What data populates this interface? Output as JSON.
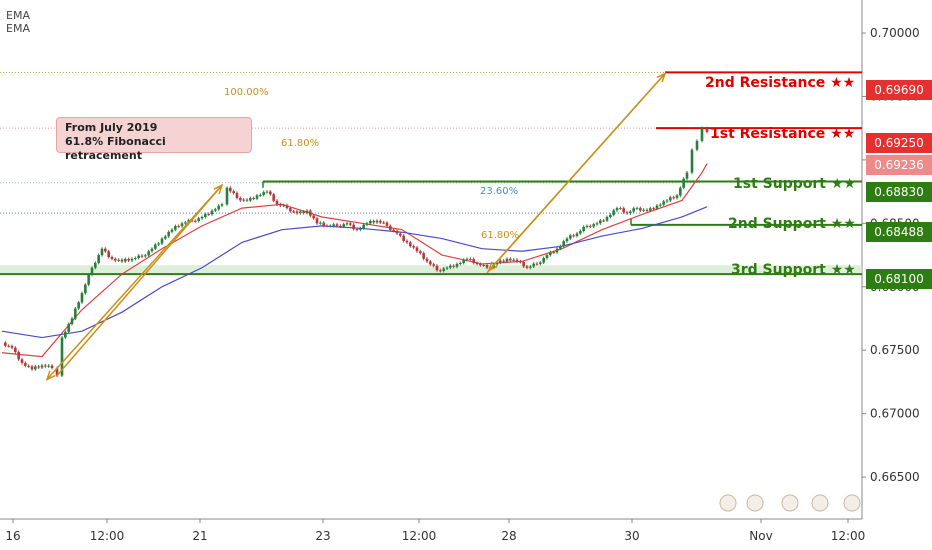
{
  "indicators": {
    "ema_1": "EMA",
    "ema_2": "EMA"
  },
  "callout": {
    "line1": "From July 2019",
    "line2": "61.8% Fibonacci retracement"
  },
  "fib": {
    "f100": "100.00%",
    "f618_upper": "61.80%",
    "f236": "23.60%",
    "f618_lower": "61.80%"
  },
  "levels": {
    "r2": {
      "label": "2nd Resistance ★★",
      "price": "0.69690"
    },
    "r1": {
      "label": "1st Resistance ★★",
      "price": "0.69250"
    },
    "current": {
      "price": "0.69236"
    },
    "s1": {
      "label": "1st Support ★★",
      "price": "0.68830"
    },
    "s2": {
      "label": "2nd Support ★★",
      "price": "0.68488"
    },
    "s3": {
      "label": "3rd Support ★★",
      "price": "0.68100"
    }
  },
  "chart_data": {
    "type": "line",
    "title": "",
    "xlabel": "",
    "ylabel": "",
    "y_ticks": [
      "0.70000",
      "0.69500",
      "0.69000",
      "0.68500",
      "0.68000",
      "0.67500",
      "0.67000",
      "0.66500"
    ],
    "x_ticks": [
      "16",
      "12:00",
      "21",
      "23",
      "12:00",
      "28",
      "30",
      "Nov",
      "12:00"
    ],
    "ylim": [
      0.6617,
      0.7026
    ],
    "colors": {
      "up": "#26803a",
      "down": "#b23a3a",
      "ema_fast": "#e04040",
      "ema_slow": "#4a4ac8",
      "support": "#2e7d12",
      "resistance": "#e00000",
      "fib": "#c9901a"
    },
    "series": [
      {
        "name": "price",
        "x": [
          0,
          10,
          20,
          30,
          40,
          50,
          55,
          60,
          70,
          80,
          90,
          100,
          110,
          120,
          130,
          140,
          150,
          160,
          170,
          180,
          190,
          200,
          210,
          220,
          225,
          235,
          245,
          255,
          265,
          275,
          285,
          295,
          305,
          315,
          325,
          335,
          345,
          355,
          365,
          375,
          385,
          395,
          405,
          415,
          425,
          435,
          445,
          455,
          465,
          475,
          485,
          495,
          505,
          515,
          525,
          535,
          545,
          555,
          565,
          575,
          585,
          595,
          605,
          615,
          625,
          635,
          645,
          655,
          665,
          675,
          685,
          690,
          695,
          700,
          705
        ],
        "y": [
          0.6756,
          0.6752,
          0.674,
          0.6735,
          0.6738,
          0.6736,
          0.673,
          0.676,
          0.6775,
          0.6795,
          0.6815,
          0.683,
          0.6822,
          0.682,
          0.6822,
          0.6824,
          0.683,
          0.6838,
          0.6845,
          0.685,
          0.6852,
          0.6855,
          0.686,
          0.6865,
          0.6878,
          0.687,
          0.6868,
          0.6872,
          0.6875,
          0.6865,
          0.6862,
          0.6858,
          0.686,
          0.685,
          0.6848,
          0.6848,
          0.685,
          0.6845,
          0.685,
          0.6852,
          0.6848,
          0.6842,
          0.6835,
          0.6828,
          0.682,
          0.6813,
          0.6815,
          0.6818,
          0.6822,
          0.6818,
          0.6815,
          0.6819,
          0.6822,
          0.682,
          0.6815,
          0.6818,
          0.6825,
          0.683,
          0.6838,
          0.6842,
          0.6848,
          0.685,
          0.6855,
          0.6862,
          0.6858,
          0.6862,
          0.686,
          0.6864,
          0.6868,
          0.6872,
          0.689,
          0.6908,
          0.6915,
          0.6925,
          0.6922
        ]
      },
      {
        "name": "EMA",
        "x": [
          0,
          40,
          80,
          120,
          160,
          200,
          240,
          280,
          320,
          360,
          400,
          440,
          480,
          520,
          560,
          600,
          640,
          680,
          700,
          705
        ],
        "y": [
          0.6748,
          0.6745,
          0.6782,
          0.681,
          0.683,
          0.6848,
          0.6862,
          0.6865,
          0.6855,
          0.685,
          0.6845,
          0.6825,
          0.6818,
          0.682,
          0.683,
          0.6845,
          0.6857,
          0.6868,
          0.689,
          0.6897
        ]
      },
      {
        "name": "EMA",
        "x": [
          0,
          40,
          80,
          120,
          160,
          200,
          240,
          280,
          320,
          360,
          400,
          440,
          480,
          520,
          560,
          600,
          640,
          680,
          705
        ],
        "y": [
          0.6765,
          0.676,
          0.6765,
          0.678,
          0.68,
          0.6815,
          0.6835,
          0.6845,
          0.6848,
          0.6846,
          0.6843,
          0.6838,
          0.683,
          0.6828,
          0.6832,
          0.684,
          0.6846,
          0.6855,
          0.6863
        ]
      }
    ]
  }
}
